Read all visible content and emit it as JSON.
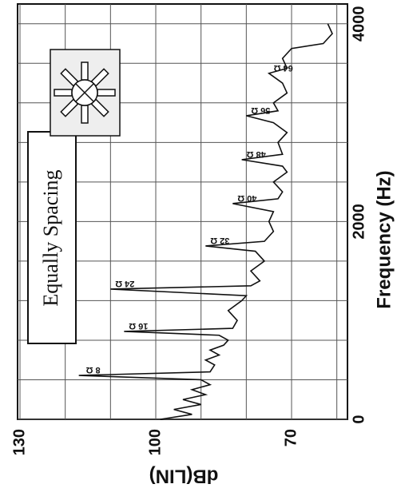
{
  "chart_data": {
    "type": "line",
    "inset_label": "Equally Spacing",
    "x_label": "Frequency (Hz)",
    "y_label": "dB(LIN)",
    "xlim": [
      0,
      4200
    ],
    "xticks": [
      0,
      2000,
      4000
    ],
    "minor_xticks": [
      400,
      800,
      1200,
      1600,
      2400,
      2800,
      3200,
      3600
    ],
    "ylim": [
      58,
      130
    ],
    "yticks": [
      130,
      100,
      70
    ],
    "minor_yticks": [
      120,
      110,
      90,
      80,
      60
    ],
    "grid": true,
    "series": [
      {
        "color": "#111111",
        "x": [
          0,
          50,
          100,
          150,
          200,
          250,
          300,
          350,
          400,
          444,
          480,
          550,
          600,
          650,
          700,
          750,
          800,
          850,
          889,
          920,
          1000,
          1100,
          1200,
          1250,
          1317,
          1350,
          1400,
          1500,
          1600,
          1700,
          1753,
          1800,
          1900,
          2000,
          2100,
          2182,
          2230,
          2300,
          2400,
          2500,
          2560,
          2626,
          2680,
          2800,
          2900,
          3000,
          3070,
          3120,
          3200,
          3300,
          3400,
          3499,
          3550,
          3650,
          3750,
          3800,
          3900,
          4000
        ],
        "values": [
          99,
          92,
          96,
          90,
          94,
          89,
          92,
          88,
          90,
          117,
          88,
          87,
          89,
          86,
          88,
          85,
          84,
          86,
          107,
          83,
          82,
          84,
          81,
          80,
          110,
          79,
          77,
          79,
          76,
          78,
          89,
          76,
          74,
          75,
          74,
          83,
          73,
          72,
          74,
          71,
          72,
          81,
          72,
          73,
          71,
          74,
          80,
          73,
          74,
          71,
          72,
          75,
          71,
          72,
          70,
          63,
          61,
          62
        ]
      }
    ],
    "annotations": [
      {
        "text": "8 Ω",
        "x": 444,
        "y": 117
      },
      {
        "text": "16 Ω",
        "x": 889,
        "y": 107
      },
      {
        "text": "24 Ω",
        "x": 1317,
        "y": 110
      },
      {
        "text": "32 Ω",
        "x": 1753,
        "y": 89
      },
      {
        "text": "40 Ω",
        "x": 2182,
        "y": 83
      },
      {
        "text": "48 Ω",
        "x": 2626,
        "y": 81
      },
      {
        "text": "56 Ω",
        "x": 3070,
        "y": 80
      },
      {
        "text": "64 Ω",
        "x": 3499,
        "y": 75
      }
    ]
  }
}
